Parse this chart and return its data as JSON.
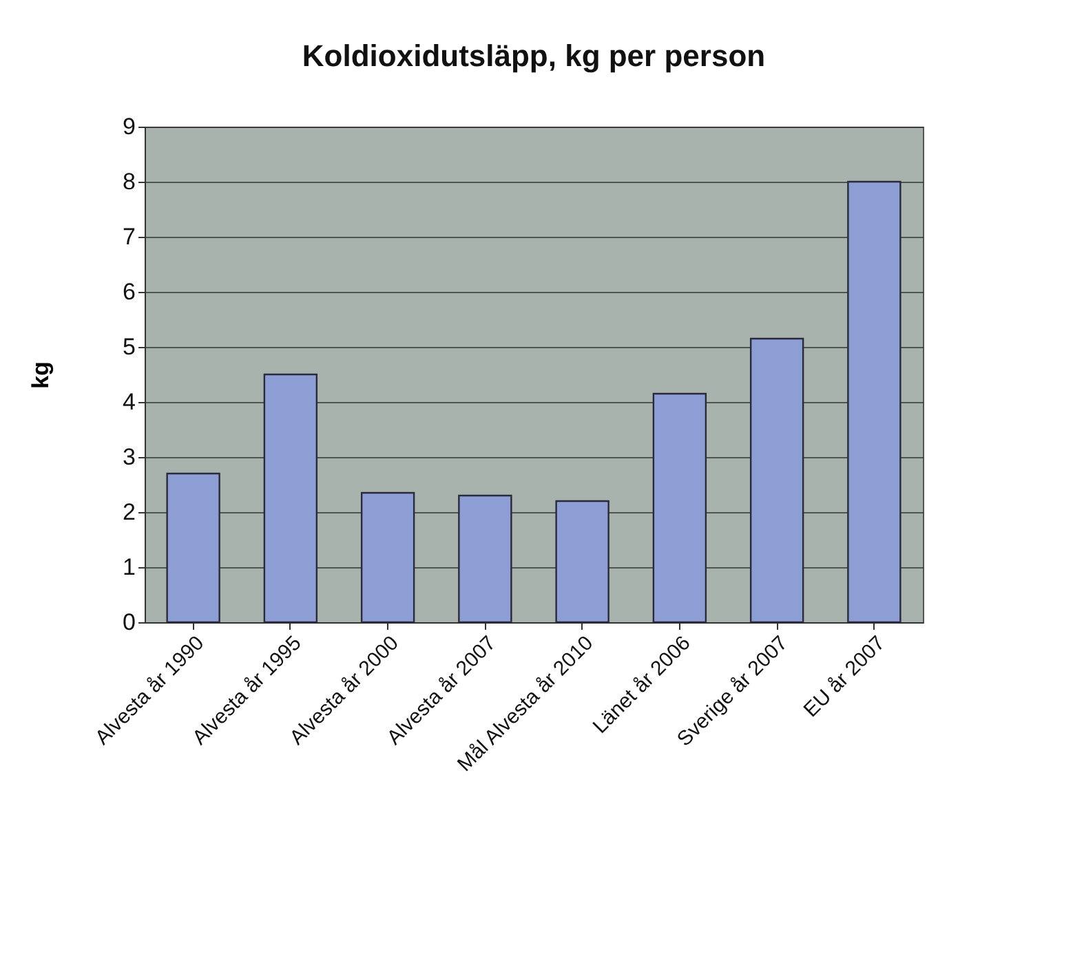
{
  "chart_data": {
    "type": "bar",
    "title": "Koldioxidutsläpp, kg per person",
    "ylabel": "kg",
    "categories": [
      "Alvesta år 1990",
      "Alvesta år 1995",
      "Alvesta år 2000",
      "Alvesta år 2007",
      "Mål Alvesta år 2010",
      "Länet år 2006",
      "Sverige år 2007",
      "EU år 2007"
    ],
    "values": [
      2.7,
      4.5,
      2.35,
      2.3,
      2.2,
      4.15,
      5.15,
      8.0
    ],
    "color": "#8c9ed4",
    "ylim": [
      0,
      9
    ],
    "yticks": [
      0,
      1,
      2,
      3,
      4,
      5,
      6,
      7,
      8,
      9
    ],
    "grid": "y"
  }
}
